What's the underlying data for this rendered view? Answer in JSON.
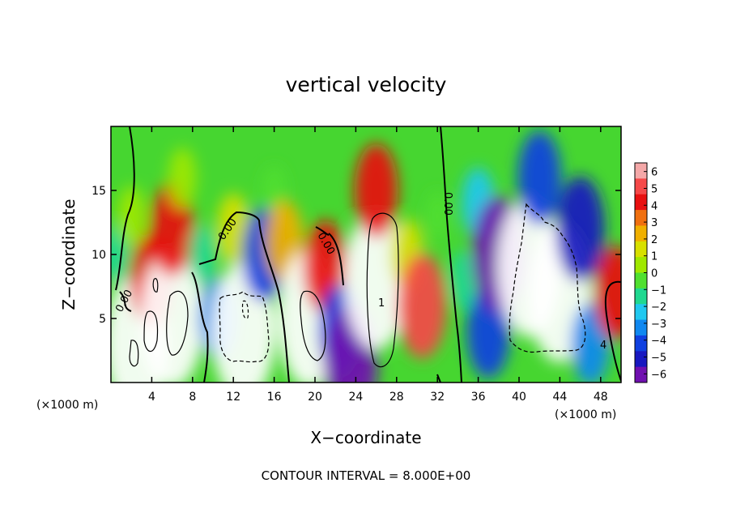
{
  "chart_data": {
    "type": "heatmap",
    "title": "vertical velocity",
    "xlabel": "X−coordinate",
    "ylabel": "Z−coordinate",
    "x_unit": "(×1000 m)",
    "x_range": [
      0,
      50
    ],
    "y_range": [
      0,
      20
    ],
    "x_ticks": [
      4,
      8,
      12,
      16,
      20,
      24,
      28,
      32,
      36,
      40,
      44,
      48
    ],
    "y_ticks": [
      5,
      10,
      15
    ],
    "colorbar": {
      "ticks": [
        "6",
        "5",
        "4",
        "3",
        "2",
        "1",
        "0",
        "−1",
        "−2",
        "−3",
        "−4",
        "−5",
        "−6"
      ],
      "range": [
        -6,
        6
      ],
      "colors": [
        "#f4a8a8",
        "#f54848",
        "#e81010",
        "#f07010",
        "#f0b000",
        "#d8e000",
        "#a0e800",
        "#50e030",
        "#20d890",
        "#20c8f0",
        "#1088f0",
        "#1040e0",
        "#1818c0",
        "#7010b0"
      ]
    },
    "contour_interval_text": "CONTOUR INTERVAL = 8.000E+00",
    "contour_labels": [
      "0.00",
      "0.00",
      "0.00",
      "0.00",
      "1",
      "4"
    ],
    "columns": [
      {
        "x": 0.5,
        "y": 10,
        "value": -1
      },
      {
        "x": 2,
        "y": 13,
        "value": 1
      },
      {
        "x": 2.5,
        "y": 3,
        "value": 8
      },
      {
        "x": 4,
        "y": 8,
        "value": 4
      },
      {
        "x": 6,
        "y": 5,
        "value": 8
      },
      {
        "x": 6,
        "y": 12,
        "value": 4
      },
      {
        "x": 7,
        "y": 16,
        "value": 1
      },
      {
        "x": 9,
        "y": 10,
        "value": -1
      },
      {
        "x": 10.5,
        "y": 5,
        "value": -3
      },
      {
        "x": 12,
        "y": 12,
        "value": 2
      },
      {
        "x": 13,
        "y": 4,
        "value": -8
      },
      {
        "x": 15,
        "y": 10,
        "value": -4
      },
      {
        "x": 16,
        "y": 15,
        "value": 0
      },
      {
        "x": 17,
        "y": 11,
        "value": 3
      },
      {
        "x": 19.5,
        "y": 5,
        "value": 8
      },
      {
        "x": 21,
        "y": 9,
        "value": 4
      },
      {
        "x": 22.5,
        "y": 4,
        "value": -4
      },
      {
        "x": 23.5,
        "y": 1.5,
        "value": -6
      },
      {
        "x": 26,
        "y": 8,
        "value": 9
      },
      {
        "x": 26,
        "y": 15,
        "value": 4
      },
      {
        "x": 29,
        "y": 10,
        "value": 2
      },
      {
        "x": 30.5,
        "y": 6,
        "value": 5
      },
      {
        "x": 32,
        "y": 13,
        "value": 0
      },
      {
        "x": 34.5,
        "y": 8,
        "value": -1
      },
      {
        "x": 36,
        "y": 14,
        "value": -2
      },
      {
        "x": 37,
        "y": 4,
        "value": -4
      },
      {
        "x": 38,
        "y": 10,
        "value": -6
      },
      {
        "x": 41,
        "y": 9,
        "value": -8
      },
      {
        "x": 44,
        "y": 7,
        "value": -8
      },
      {
        "x": 42,
        "y": 16,
        "value": -4
      },
      {
        "x": 46,
        "y": 12,
        "value": -5
      },
      {
        "x": 47,
        "y": 3,
        "value": -3
      },
      {
        "x": 49.5,
        "y": 7,
        "value": 4
      }
    ]
  }
}
